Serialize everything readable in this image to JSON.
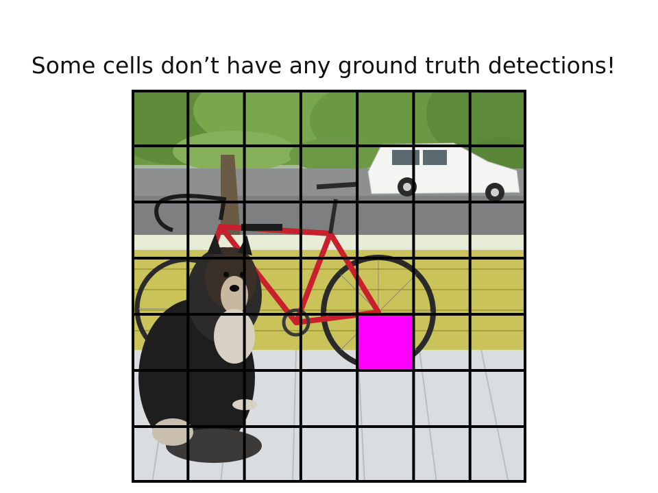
{
  "slide": {
    "title": "Some cells don’t have any ground truth detections!"
  },
  "photo": {
    "subjects": [
      "dog",
      "bicycle",
      "truck"
    ]
  },
  "grid": {
    "rows": 7,
    "cols": 7,
    "line_color": "#000000",
    "highlight": {
      "row": 4,
      "col": 4,
      "color": "#ff00ff"
    }
  },
  "colors": {
    "foliage": "#6f9a45",
    "bike_frame": "#c8202c",
    "porch_wall": "#c9c35a",
    "porch_floor": "#d9dde0",
    "truck": "#f4f4f2"
  }
}
